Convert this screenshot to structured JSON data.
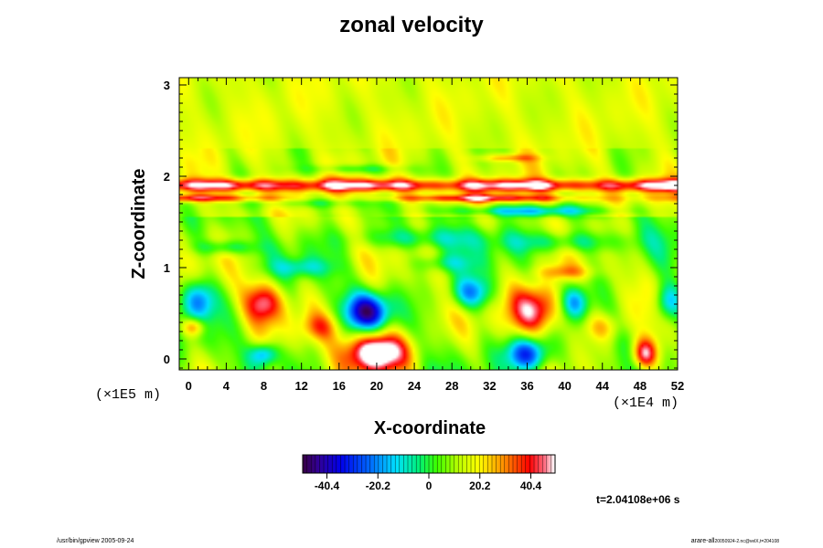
{
  "title": "zonal velocity",
  "chart_data": {
    "type": "heatmap",
    "title": "zonal velocity",
    "xlabel": "X-coordinate",
    "ylabel": "Z-coordinate",
    "x_scale_label": "(×1E4 m)",
    "z_scale_label": "(×1E5 m)",
    "x_ticks": [
      0,
      4,
      8,
      12,
      16,
      20,
      24,
      28,
      32,
      36,
      40,
      44,
      48,
      52
    ],
    "y_ticks": [
      0,
      1,
      2,
      3
    ],
    "xlim": [
      -1,
      52
    ],
    "ylim": [
      -0.12,
      3.08
    ],
    "colorbar": {
      "tick_labels": [
        "-40.4",
        "-20.2",
        "0",
        "20.2",
        "40.4"
      ],
      "tick_values": [
        -40.4,
        -20.2,
        0,
        20.2,
        40.4
      ],
      "range": [
        -50,
        50
      ]
    },
    "features": [
      {
        "x": 20,
        "z": 0.08,
        "value": 55,
        "rx": 3.2,
        "rz": 0.22
      },
      {
        "x": 36,
        "z": 0.05,
        "value": -50,
        "rx": 2.2,
        "rz": 0.2
      },
      {
        "x": 37,
        "z": 0.55,
        "value": 45,
        "rx": 2.8,
        "rz": 0.28
      },
      {
        "x": 19,
        "z": 0.52,
        "value": -48,
        "rx": 2.2,
        "rz": 0.2
      },
      {
        "x": 48.5,
        "z": 0.05,
        "value": 45,
        "rx": 1.4,
        "rz": 0.18
      },
      {
        "x": 8,
        "z": 0.62,
        "value": 32,
        "rx": 2.0,
        "rz": 0.22
      },
      {
        "x": 30,
        "z": 0.72,
        "value": -32,
        "rx": 2.2,
        "rz": 0.18
      },
      {
        "x": 1,
        "z": 0.65,
        "value": -30,
        "rx": 1.8,
        "rz": 0.22
      },
      {
        "x": 8,
        "z": 0.05,
        "value": -30,
        "rx": 1.5,
        "rz": 0.12
      },
      {
        "x": 0.5,
        "z": 0.35,
        "value": 25,
        "rx": 1.2,
        "rz": 0.1
      },
      {
        "x": 41,
        "z": 0.62,
        "value": -28,
        "rx": 1.5,
        "rz": 0.18
      },
      {
        "x": 51,
        "z": 0.62,
        "value": -28,
        "rx": 1.5,
        "rz": 0.2
      },
      {
        "x": 14,
        "z": 0.35,
        "value": 18,
        "rx": 2.0,
        "rz": 0.15
      },
      {
        "x": 44,
        "z": 0.35,
        "value": 15,
        "rx": 2.0,
        "rz": 0.15
      },
      {
        "x": 24,
        "z": 1.32,
        "value": -18,
        "rx": 6,
        "rz": 0.12
      },
      {
        "x": 40,
        "z": 1.28,
        "value": -20,
        "rx": 6,
        "rz": 0.12
      },
      {
        "x": 4,
        "z": 1.22,
        "value": -18,
        "rx": 3,
        "rz": 0.08
      },
      {
        "x": 36,
        "z": 1.62,
        "value": -26,
        "rx": 9,
        "rz": 0.06
      },
      {
        "x": 14,
        "z": 1.72,
        "value": -14,
        "rx": 6,
        "rz": 0.07
      },
      {
        "x": 12,
        "z": 1.0,
        "value": -15,
        "rx": 3,
        "rz": 0.1
      },
      {
        "x": 27,
        "z": 1.05,
        "value": -14,
        "rx": 3,
        "rz": 0.1
      },
      {
        "x": 40,
        "z": 0.95,
        "value": 15,
        "rx": 3,
        "rz": 0.08
      },
      {
        "x": 18,
        "z": 2.08,
        "value": -14,
        "rx": 5,
        "rz": 0.05
      },
      {
        "x": 34,
        "z": 2.2,
        "value": 16,
        "rx": 3,
        "rz": 0.04
      }
    ],
    "jet_band": {
      "z": 1.9,
      "value": 52,
      "width": 0.07
    },
    "jet_lower": {
      "z": 1.76,
      "value": 30,
      "width": 0.04
    }
  },
  "footer": {
    "left": "/usr/bin/gpview 2005-09-24",
    "right": "arare-all",
    "right_small": "20050924-2.nc@velX,t=204108"
  },
  "time_label": "t=2.04108e+06 s"
}
